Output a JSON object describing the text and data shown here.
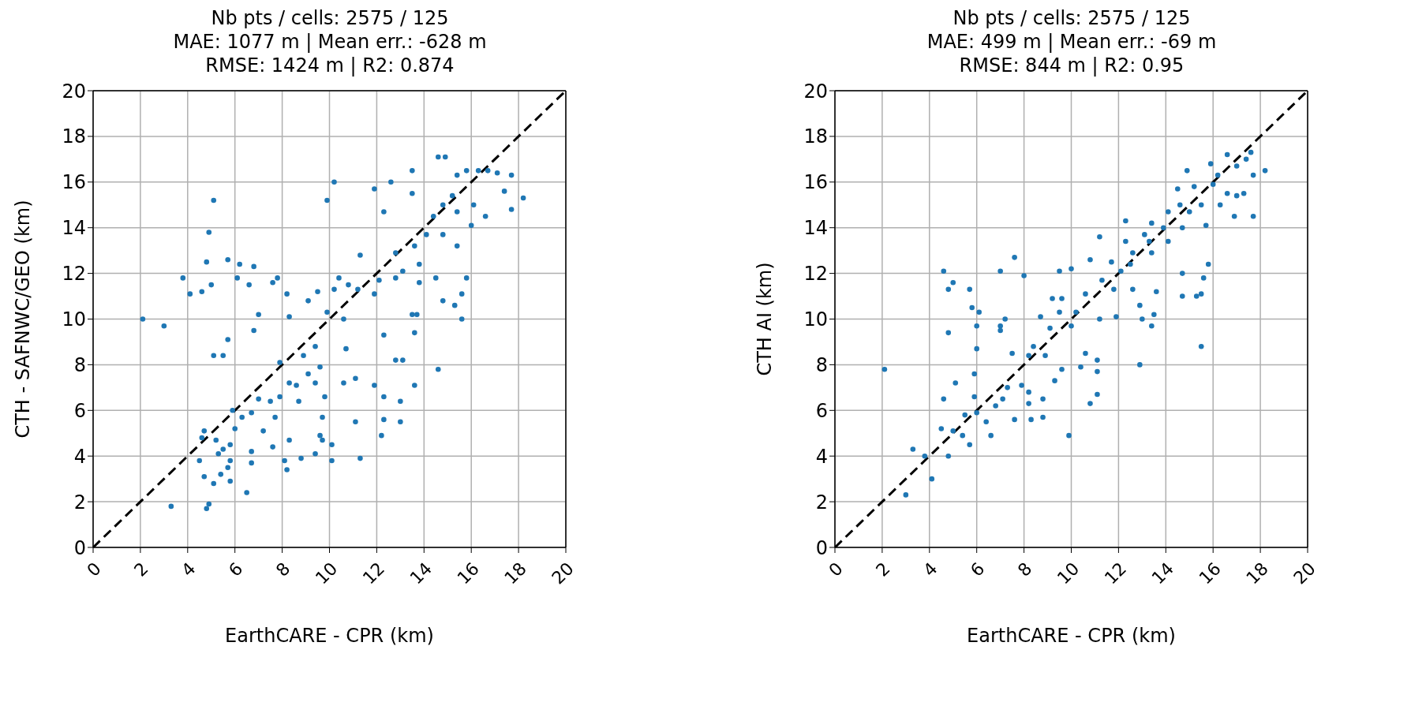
{
  "chart_data": [
    {
      "type": "scatter",
      "title": "Nb pts / cells: 2575 / 125\nMAE: 1077 m | Mean err.: -628 m\nRMSE: 1424 m | R2: 0.874",
      "xlabel": "EarthCARE - CPR (km)",
      "ylabel": "CTH - SAFNWC/GEO (km)",
      "xlim": [
        0,
        20
      ],
      "ylim": [
        0,
        20
      ],
      "xticks": [
        0,
        2,
        4,
        6,
        8,
        10,
        12,
        14,
        16,
        18,
        20
      ],
      "yticks": [
        0,
        2,
        4,
        6,
        8,
        10,
        12,
        14,
        16,
        18,
        20
      ],
      "grid": true,
      "series": [
        {
          "type": "scatter",
          "marker": "circle",
          "color": "#1f77b4",
          "x": [
            2.1,
            3.0,
            3.3,
            3.8,
            4.1,
            4.6,
            4.8,
            4.9,
            5.1,
            5.0,
            5.1,
            5.5,
            5.7,
            5.7,
            6.1,
            6.2,
            6.6,
            6.8,
            6.8,
            7.0,
            7.6,
            7.8,
            8.2,
            8.3,
            9.9,
            10.2,
            4.8,
            4.9,
            6.5,
            5.8,
            5.1,
            4.7,
            4.5,
            5.4,
            5.7,
            4.6,
            4.7,
            5.2,
            5.5,
            5.8,
            6.0,
            5.9,
            6.3,
            6.7,
            6.7,
            5.3,
            5.8,
            6.7,
            7.0,
            7.2,
            7.5,
            7.6,
            7.7,
            7.9,
            8.2,
            8.1,
            7.9,
            8.3,
            8.3,
            8.6,
            8.7,
            8.8,
            9.4,
            9.6,
            9.7,
            9.7,
            10.1,
            10.1,
            9.8,
            9.1,
            9.4,
            8.9,
            9.4,
            9.6,
            9.1,
            9.5,
            9.9,
            10.2,
            10.4,
            10.6,
            10.7,
            10.6,
            11.1,
            11.3,
            11.1,
            11.9,
            12.2,
            12.3,
            12.3,
            12.8,
            13.1,
            13.0,
            13.0,
            13.6,
            14.6,
            12.3,
            13.6,
            11.2,
            10.8,
            11.3,
            11.9,
            12.3,
            12.6,
            14.6,
            14.9,
            13.5,
            13.5,
            12.8,
            12.8,
            12.1,
            11.9,
            13.1,
            13.6,
            13.8,
            14.1,
            14.4,
            14.8,
            15.2,
            15.4,
            15.8,
            16.3,
            16.7,
            17.1,
            17.7,
            18.2,
            17.7,
            17.4,
            16.6,
            16.0,
            15.4,
            15.8,
            15.6,
            15.6,
            15.3,
            14.8,
            14.5,
            13.8,
            13.7,
            13.5,
            14.8,
            15.4,
            16.1
          ],
          "values": [
            10.0,
            9.7,
            1.8,
            11.8,
            11.1,
            11.2,
            12.5,
            13.8,
            15.2,
            11.5,
            8.4,
            8.4,
            9.1,
            12.6,
            11.8,
            12.4,
            11.5,
            12.3,
            9.5,
            10.2,
            11.6,
            11.8,
            11.1,
            10.1,
            15.2,
            16.0,
            1.7,
            1.9,
            2.4,
            2.9,
            2.8,
            3.1,
            3.8,
            3.2,
            3.5,
            4.8,
            5.1,
            4.7,
            4.3,
            4.5,
            5.2,
            6.0,
            5.7,
            5.9,
            3.7,
            4.1,
            3.8,
            4.2,
            6.5,
            5.1,
            6.4,
            4.4,
            5.7,
            6.6,
            3.4,
            3.8,
            8.1,
            4.7,
            7.2,
            7.1,
            6.4,
            3.9,
            4.1,
            4.9,
            4.7,
            5.7,
            4.5,
            3.8,
            6.6,
            7.6,
            7.2,
            8.4,
            8.8,
            7.9,
            10.8,
            11.2,
            10.3,
            11.3,
            11.8,
            10.0,
            8.7,
            7.2,
            5.5,
            3.9,
            7.4,
            7.1,
            4.9,
            5.6,
            6.6,
            8.2,
            8.2,
            5.5,
            6.4,
            7.1,
            7.8,
            9.3,
            9.4,
            11.3,
            11.5,
            12.8,
            15.7,
            14.7,
            16.0,
            17.1,
            17.1,
            16.5,
            15.5,
            12.9,
            11.8,
            11.7,
            11.1,
            12.1,
            13.2,
            12.4,
            13.7,
            14.5,
            15.0,
            15.4,
            16.3,
            16.5,
            16.5,
            16.5,
            16.4,
            16.3,
            15.3,
            14.8,
            15.6,
            14.5,
            14.1,
            13.2,
            11.8,
            11.1,
            10.0,
            10.6,
            10.8,
            11.8,
            11.6,
            10.2,
            10.2,
            13.7,
            14.7,
            15.0
          ]
        },
        {
          "type": "line",
          "color": "#000000",
          "line_style": "dashed",
          "x": [
            0,
            20
          ],
          "values": [
            0,
            20
          ]
        }
      ]
    },
    {
      "type": "scatter",
      "title": "Nb pts / cells: 2575 / 125\nMAE: 499 m | Mean err.: -69 m\nRMSE: 844 m | R2: 0.95",
      "xlabel": "EarthCARE - CPR (km)",
      "ylabel": "CTH AI (km)",
      "xlim": [
        0,
        20
      ],
      "ylim": [
        0,
        20
      ],
      "xticks": [
        0,
        2,
        4,
        6,
        8,
        10,
        12,
        14,
        16,
        18,
        20
      ],
      "yticks": [
        0,
        2,
        4,
        6,
        8,
        10,
        12,
        14,
        16,
        18,
        20
      ],
      "grid": true,
      "series": [
        {
          "type": "scatter",
          "marker": "circle",
          "color": "#1f77b4",
          "x": [
            2.1,
            3.0,
            3.3,
            3.8,
            4.1,
            4.6,
            4.8,
            4.5,
            4.6,
            4.8,
            5.0,
            4.8,
            5.1,
            5.0,
            5.4,
            5.7,
            5.5,
            6.0,
            6.4,
            6.6,
            6.8,
            5.9,
            5.7,
            5.8,
            6.1,
            6.0,
            6.0,
            5.9,
            7.0,
            7.6,
            8.0,
            7.0,
            7.2,
            7.0,
            7.1,
            7.3,
            7.5,
            7.6,
            7.9,
            8.2,
            8.2,
            8.3,
            8.8,
            8.8,
            9.3,
            9.9,
            8.2,
            8.4,
            8.9,
            9.6,
            10.4,
            11.1,
            11.1,
            10.8,
            11.1,
            10.6,
            8.7,
            9.1,
            9.5,
            10.0,
            10.2,
            9.2,
            9.6,
            9.5,
            10.0,
            10.6,
            10.8,
            11.2,
            11.2,
            11.3,
            11.8,
            11.7,
            11.9,
            12.3,
            12.3,
            12.5,
            12.6,
            12.9,
            13.0,
            13.4,
            12.9,
            13.5,
            13.6,
            13.4,
            13.1,
            13.4,
            14.1,
            14.1,
            14.5,
            14.7,
            14.9,
            15.2,
            15.5,
            15.7,
            15.8,
            15.6,
            15.5,
            14.7,
            15.3,
            15.5,
            14.7,
            15.9,
            16.2,
            16.6,
            17.0,
            17.4,
            17.6,
            17.7,
            18.2,
            17.7,
            16.9,
            17.3,
            17.0,
            16.3,
            16.6,
            16.0,
            15.0,
            14.6,
            13.9,
            13.3,
            12.6,
            12.1
          ],
          "values": [
            7.8,
            2.3,
            4.3,
            4.0,
            3.0,
            6.5,
            4.0,
            5.2,
            12.1,
            11.3,
            11.6,
            9.4,
            7.2,
            5.1,
            4.9,
            4.5,
            5.8,
            5.9,
            5.5,
            4.9,
            6.2,
            6.6,
            11.3,
            10.5,
            10.3,
            9.7,
            8.7,
            7.6,
            12.1,
            12.7,
            11.9,
            9.7,
            10.0,
            9.5,
            6.5,
            7.0,
            8.5,
            5.6,
            7.1,
            6.8,
            6.3,
            5.6,
            6.5,
            5.7,
            7.3,
            4.9,
            8.4,
            8.8,
            8.4,
            7.8,
            7.9,
            7.7,
            6.7,
            6.3,
            8.2,
            8.5,
            10.1,
            9.6,
            10.3,
            9.7,
            10.3,
            10.9,
            10.9,
            12.1,
            12.2,
            11.1,
            12.6,
            13.6,
            10.0,
            11.7,
            11.3,
            12.5,
            10.1,
            14.3,
            13.4,
            12.4,
            11.3,
            10.6,
            10.0,
            9.7,
            8.0,
            10.2,
            11.2,
            14.2,
            13.7,
            12.9,
            13.4,
            14.7,
            15.7,
            14.0,
            16.5,
            15.8,
            15.0,
            14.1,
            12.4,
            11.8,
            11.1,
            11.0,
            11.0,
            8.8,
            12.0,
            16.8,
            16.3,
            17.2,
            16.7,
            17.0,
            17.3,
            16.3,
            16.5,
            14.5,
            14.5,
            15.5,
            15.4,
            15.0,
            15.5,
            15.9,
            14.7,
            15.0,
            14.0,
            13.4,
            12.9,
            12.1
          ]
        },
        {
          "type": "line",
          "color": "#000000",
          "line_style": "dashed",
          "x": [
            0,
            20
          ],
          "values": [
            0,
            20
          ]
        }
      ]
    }
  ]
}
